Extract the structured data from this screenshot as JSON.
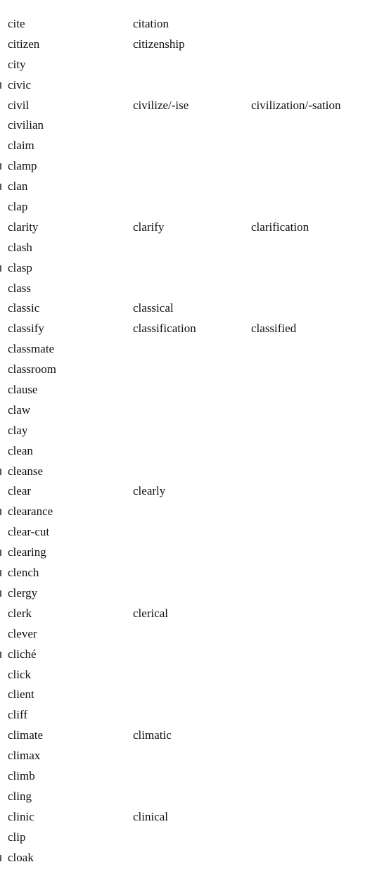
{
  "entries": [
    {
      "word": "cite",
      "related": "citation",
      "related2": "",
      "marked": false
    },
    {
      "word": "citizen",
      "related": "citizenship",
      "related2": "",
      "marked": false
    },
    {
      "word": "city",
      "related": "",
      "related2": "",
      "marked": false
    },
    {
      "word": "civic",
      "related": "",
      "related2": "",
      "marked": true
    },
    {
      "word": "civil",
      "related": "civilize/-ise",
      "related2": "civilization/-sation",
      "marked": false
    },
    {
      "word": "civilian",
      "related": "",
      "related2": "",
      "marked": false
    },
    {
      "word": "claim",
      "related": "",
      "related2": "",
      "marked": false
    },
    {
      "word": "clamp",
      "related": "",
      "related2": "",
      "marked": true
    },
    {
      "word": "clan",
      "related": "",
      "related2": "",
      "marked": true
    },
    {
      "word": "clap",
      "related": "",
      "related2": "",
      "marked": false
    },
    {
      "word": "clarity",
      "related": "clarify",
      "related2": "clarification",
      "marked": false
    },
    {
      "word": "clash",
      "related": "",
      "related2": "",
      "marked": false
    },
    {
      "word": "clasp",
      "related": "",
      "related2": "",
      "marked": true
    },
    {
      "word": "class",
      "related": "",
      "related2": "",
      "marked": false
    },
    {
      "word": "classic",
      "related": "classical",
      "related2": "",
      "marked": false
    },
    {
      "word": "classify",
      "related": "classification",
      "related2": "classified",
      "marked": false
    },
    {
      "word": "classmate",
      "related": "",
      "related2": "",
      "marked": false
    },
    {
      "word": "classroom",
      "related": "",
      "related2": "",
      "marked": false
    },
    {
      "word": "clause",
      "related": "",
      "related2": "",
      "marked": false
    },
    {
      "word": "claw",
      "related": "",
      "related2": "",
      "marked": false
    },
    {
      "word": "clay",
      "related": "",
      "related2": "",
      "marked": false
    },
    {
      "word": "clean",
      "related": "",
      "related2": "",
      "marked": false
    },
    {
      "word": "cleanse",
      "related": "",
      "related2": "",
      "marked": true
    },
    {
      "word": "clear",
      "related": "clearly",
      "related2": "",
      "marked": false
    },
    {
      "word": "clearance",
      "related": "",
      "related2": "",
      "marked": true
    },
    {
      "word": "clear-cut",
      "related": "",
      "related2": "",
      "marked": false
    },
    {
      "word": "clearing",
      "related": "",
      "related2": "",
      "marked": true
    },
    {
      "word": "clench",
      "related": "",
      "related2": "",
      "marked": true
    },
    {
      "word": "clergy",
      "related": "",
      "related2": "",
      "marked": true
    },
    {
      "word": "clerk",
      "related": "clerical",
      "related2": "",
      "marked": false
    },
    {
      "word": "clever",
      "related": "",
      "related2": "",
      "marked": false
    },
    {
      "word": "cliché",
      "related": "",
      "related2": "",
      "marked": true
    },
    {
      "word": "click",
      "related": "",
      "related2": "",
      "marked": false
    },
    {
      "word": "client",
      "related": "",
      "related2": "",
      "marked": false
    },
    {
      "word": "cliff",
      "related": "",
      "related2": "",
      "marked": false
    },
    {
      "word": "climate",
      "related": "climatic",
      "related2": "",
      "marked": false
    },
    {
      "word": "climax",
      "related": "",
      "related2": "",
      "marked": false
    },
    {
      "word": "climb",
      "related": "",
      "related2": "",
      "marked": false
    },
    {
      "word": "cling",
      "related": "",
      "related2": "",
      "marked": false
    },
    {
      "word": "clinic",
      "related": "clinical",
      "related2": "",
      "marked": false
    },
    {
      "word": "clip",
      "related": "",
      "related2": "",
      "marked": false
    },
    {
      "word": "cloak",
      "related": "",
      "related2": "",
      "marked": true
    }
  ]
}
